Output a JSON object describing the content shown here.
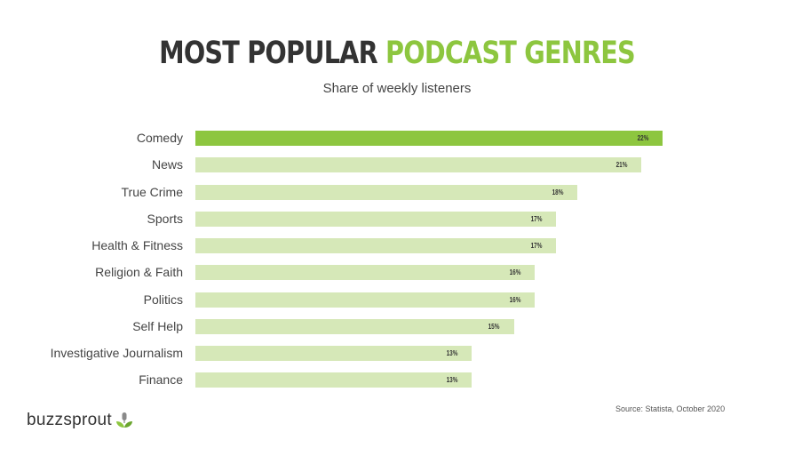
{
  "header": {
    "title_part1": "MOST POPULAR ",
    "title_part2": "PODCAST GENRES",
    "subtitle": "Share of weekly listeners"
  },
  "footer": {
    "source": "Source: Statista, October 2020",
    "brand": "buzzsprout",
    "brand_icon": "sprout-microphone-icon"
  },
  "colors": {
    "accent": "#8dc63f",
    "bar_light": "#d6e8b8",
    "title_dark": "#333333"
  },
  "chart_data": {
    "type": "bar",
    "orientation": "horizontal",
    "title": "MOST POPULAR PODCAST GENRES",
    "subtitle": "Share of weekly listeners",
    "xlabel": "",
    "ylabel": "",
    "categories": [
      "Comedy",
      "News",
      "True Crime",
      "Sports",
      "Health & Fitness",
      "Religion & Faith",
      "Politics",
      "Self Help",
      "Investigative Journalism",
      "Finance"
    ],
    "values": [
      22,
      21,
      18,
      17,
      17,
      16,
      16,
      15,
      13,
      13
    ],
    "value_labels": [
      "22%",
      "21%",
      "18%",
      "17%",
      "17%",
      "16%",
      "16%",
      "15%",
      "13%",
      "13%"
    ],
    "unit": "%",
    "highlight_index": 0,
    "grid": false,
    "legend": null,
    "source": "Source: Statista, October 2020"
  }
}
